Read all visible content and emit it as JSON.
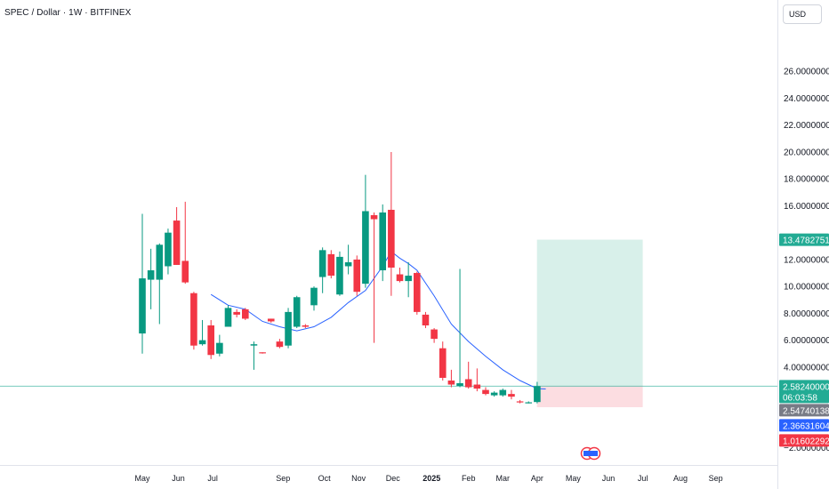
{
  "header": {
    "title": "SPEC / Dollar · 1W · BITFINEX",
    "currency": "USD"
  },
  "colors": {
    "up": "#089981",
    "down": "#f23645",
    "ma": "#2962ff",
    "profit_zone": "#d1ede6",
    "loss_zone": "#fbd7dc",
    "current_price_label": "#22ab94",
    "blue_label": "#2962ff",
    "gray_label": "#787b86",
    "red_label": "#f23645"
  },
  "price_labels": {
    "target": "13.47827517",
    "current": "2.58240000",
    "countdown": "06:03:58",
    "gray": "2.54740138",
    "blue": "2.36631604",
    "stop": "1.01602292"
  },
  "chart_data": {
    "type": "candlestick",
    "title": "SPEC / Dollar · 1W · BITFINEX",
    "ylim": [
      -2,
      28
    ],
    "y_ticks": [
      {
        "value": 26,
        "label": "26.00000000"
      },
      {
        "value": 24,
        "label": "24.00000000"
      },
      {
        "value": 22,
        "label": "22.00000000"
      },
      {
        "value": 20,
        "label": "20.00000000"
      },
      {
        "value": 18,
        "label": "18.00000000"
      },
      {
        "value": 16,
        "label": "16.00000000"
      },
      {
        "value": 12,
        "label": "12.00000000"
      },
      {
        "value": 10,
        "label": "10.00000000"
      },
      {
        "value": 8,
        "label": "8.00000000"
      },
      {
        "value": 6,
        "label": "6.00000000"
      },
      {
        "value": 4,
        "label": "4.00000000"
      },
      {
        "value": -2,
        "label": "−2.00000000"
      }
    ],
    "x_ticks": [
      {
        "label": "May",
        "week": 0
      },
      {
        "label": "Jun",
        "week": 4.2
      },
      {
        "label": "Jul",
        "week": 8.2
      },
      {
        "label": "Sep",
        "week": 16.4
      },
      {
        "label": "Oct",
        "week": 21.2
      },
      {
        "label": "Nov",
        "week": 25.2
      },
      {
        "label": "Dec",
        "week": 29.2
      },
      {
        "label": "2025",
        "week": 33.7,
        "bold": true
      },
      {
        "label": "Feb",
        "week": 38.0
      },
      {
        "label": "Mar",
        "week": 42.0
      },
      {
        "label": "Apr",
        "week": 46.0
      },
      {
        "label": "May",
        "week": 50.2
      },
      {
        "label": "Jun",
        "week": 54.3
      },
      {
        "label": "Jul",
        "week": 58.3
      },
      {
        "label": "Aug",
        "week": 62.7
      },
      {
        "label": "Sep",
        "week": 66.8
      }
    ],
    "candles": [
      {
        "o": 6.5,
        "h": 15.4,
        "l": 5.0,
        "c": 10.6
      },
      {
        "o": 10.5,
        "h": 12.8,
        "l": 8.3,
        "c": 11.2
      },
      {
        "o": 10.5,
        "h": 13.2,
        "l": 7.2,
        "c": 13.1
      },
      {
        "o": 11.5,
        "h": 14.3,
        "l": 10.9,
        "c": 14.0
      },
      {
        "o": 14.9,
        "h": 15.9,
        "l": 11.6,
        "c": 11.6
      },
      {
        "o": 11.9,
        "h": 16.3,
        "l": 10.2,
        "c": 10.3
      },
      {
        "o": 9.5,
        "h": 9.6,
        "l": 5.3,
        "c": 5.6
      },
      {
        "o": 5.7,
        "h": 7.5,
        "l": 5.6,
        "c": 6.0
      },
      {
        "o": 7.1,
        "h": 7.5,
        "l": 4.6,
        "c": 4.9
      },
      {
        "o": 5.0,
        "h": 6.4,
        "l": 4.8,
        "c": 5.8
      },
      {
        "o": 7.0,
        "h": 8.6,
        "l": 7.0,
        "c": 8.4
      },
      {
        "o": 8.1,
        "h": 8.3,
        "l": 7.7,
        "c": 7.9
      },
      {
        "o": 8.3,
        "h": 8.4,
        "l": 7.5,
        "c": 7.6
      },
      {
        "o": 5.6,
        "h": 5.9,
        "l": 3.8,
        "c": 5.7
      },
      {
        "o": 5.1,
        "h": 5.1,
        "l": 5.0,
        "c": 5.05
      },
      {
        "o": 7.6,
        "h": 7.6,
        "l": 7.3,
        "c": 7.4
      },
      {
        "o": 5.9,
        "h": 6.1,
        "l": 5.4,
        "c": 5.5
      },
      {
        "o": 5.6,
        "h": 8.4,
        "l": 5.4,
        "c": 8.1
      },
      {
        "o": 7.0,
        "h": 9.3,
        "l": 6.9,
        "c": 9.2
      },
      {
        "o": 7.1,
        "h": 7.2,
        "l": 6.9,
        "c": 7.0
      },
      {
        "o": 8.6,
        "h": 10.0,
        "l": 8.2,
        "c": 9.9
      },
      {
        "o": 10.7,
        "h": 12.9,
        "l": 9.5,
        "c": 12.7
      },
      {
        "o": 12.4,
        "h": 12.7,
        "l": 10.6,
        "c": 10.8
      },
      {
        "o": 9.4,
        "h": 12.6,
        "l": 9.3,
        "c": 12.2
      },
      {
        "o": 11.5,
        "h": 13.1,
        "l": 10.9,
        "c": 11.8
      },
      {
        "o": 12.0,
        "h": 12.3,
        "l": 9.3,
        "c": 9.6
      },
      {
        "o": 10.2,
        "h": 18.3,
        "l": 9.9,
        "c": 15.6
      },
      {
        "o": 15.3,
        "h": 15.5,
        "l": 5.8,
        "c": 15.0
      },
      {
        "o": 11.2,
        "h": 16.1,
        "l": 10.4,
        "c": 15.5
      },
      {
        "o": 15.7,
        "h": 20.0,
        "l": 9.3,
        "c": 11.4
      },
      {
        "o": 10.9,
        "h": 11.4,
        "l": 10.3,
        "c": 10.4
      },
      {
        "o": 10.4,
        "h": 11.8,
        "l": 9.2,
        "c": 10.8
      },
      {
        "o": 11.0,
        "h": 11.1,
        "l": 7.9,
        "c": 8.1
      },
      {
        "o": 7.9,
        "h": 8.1,
        "l": 6.9,
        "c": 7.1
      },
      {
        "o": 6.8,
        "h": 6.9,
        "l": 5.8,
        "c": 6.1
      },
      {
        "o": 5.4,
        "h": 5.9,
        "l": 3.0,
        "c": 3.2
      },
      {
        "o": 3.0,
        "h": 3.8,
        "l": 2.5,
        "c": 2.7
      },
      {
        "o": 2.6,
        "h": 11.3,
        "l": 2.5,
        "c": 2.8
      },
      {
        "o": 3.1,
        "h": 4.4,
        "l": 2.4,
        "c": 2.5
      },
      {
        "o": 2.7,
        "h": 3.9,
        "l": 2.2,
        "c": 2.4
      },
      {
        "o": 2.3,
        "h": 2.5,
        "l": 1.9,
        "c": 2.0
      },
      {
        "o": 1.9,
        "h": 2.2,
        "l": 1.8,
        "c": 2.1
      },
      {
        "o": 1.9,
        "h": 2.4,
        "l": 1.8,
        "c": 2.3
      },
      {
        "o": 2.0,
        "h": 2.3,
        "l": 1.6,
        "c": 1.8
      },
      {
        "o": 1.45,
        "h": 1.55,
        "l": 1.3,
        "c": 1.4
      },
      {
        "o": 1.35,
        "h": 1.45,
        "l": 1.3,
        "c": 1.38
      },
      {
        "o": 1.4,
        "h": 2.9,
        "l": 1.3,
        "c": 2.58
      }
    ],
    "ma_line": [
      {
        "week": 8,
        "value": 9.4
      },
      {
        "week": 10,
        "value": 8.6
      },
      {
        "week": 12,
        "value": 8.3
      },
      {
        "week": 14,
        "value": 7.4
      },
      {
        "week": 16,
        "value": 7.0
      },
      {
        "week": 18,
        "value": 6.7
      },
      {
        "week": 20,
        "value": 7.0
      },
      {
        "week": 22,
        "value": 7.7
      },
      {
        "week": 24,
        "value": 8.8
      },
      {
        "week": 26,
        "value": 9.7
      },
      {
        "week": 28,
        "value": 11.5
      },
      {
        "week": 29,
        "value": 12.6
      },
      {
        "week": 30,
        "value": 12.1
      },
      {
        "week": 31,
        "value": 11.7
      },
      {
        "week": 32,
        "value": 11.2
      },
      {
        "week": 34,
        "value": 9.3
      },
      {
        "week": 36,
        "value": 7.2
      },
      {
        "week": 38,
        "value": 5.9
      },
      {
        "week": 40,
        "value": 4.8
      },
      {
        "week": 42,
        "value": 3.8
      },
      {
        "week": 44,
        "value": 3.0
      },
      {
        "week": 46,
        "value": 2.4
      },
      {
        "week": 47,
        "value": 2.37
      }
    ],
    "position": {
      "entry": 2.5824,
      "target": 13.47827517,
      "stop": 1.01602292,
      "start_week": 46.6,
      "end_week": 58.3
    }
  }
}
